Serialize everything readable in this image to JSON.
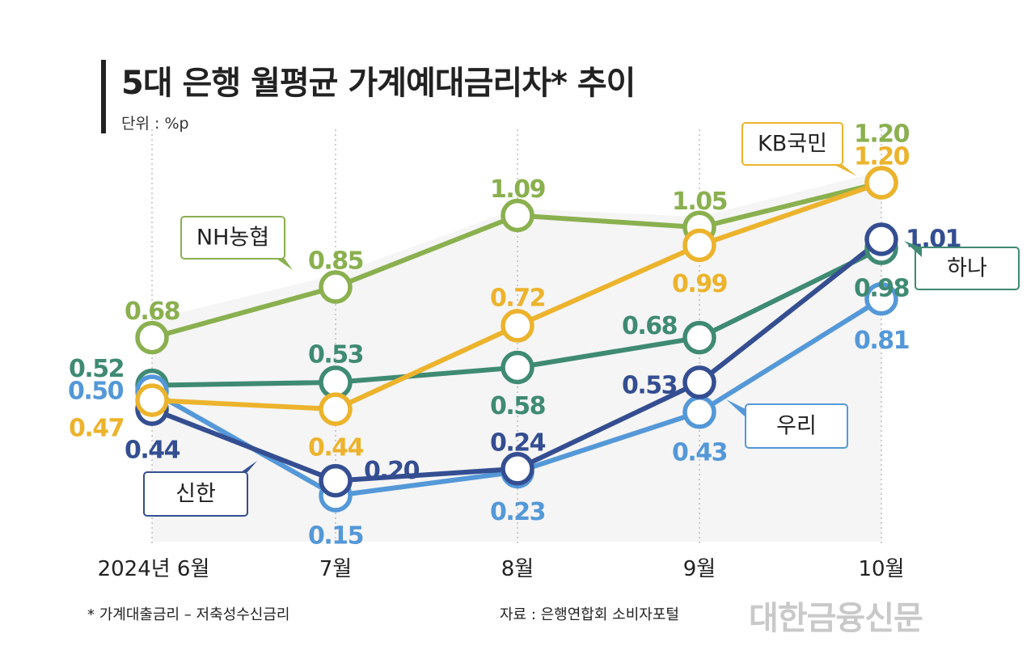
{
  "header": {
    "title": "5대 은행 월평균 가계예대금리차* 추이",
    "unit": "단위 : %p"
  },
  "footer": {
    "footnote": "* 가계대출금리 – 저축성수신금리",
    "source": "자료 : 은행연합회 소비자포털",
    "watermark": "대한금융신문"
  },
  "chart_data": {
    "type": "line",
    "title": "5대 은행 월평균 가계예대금리차* 추이",
    "ylabel": "단위 : %p",
    "categories": [
      "2024년 6월",
      "7월",
      "8월",
      "9월",
      "10월"
    ],
    "ylim": [
      0,
      1.3
    ],
    "grid": "vertical-dotted",
    "legend": "callout-labels",
    "series": [
      {
        "name": "NH농협",
        "color": "#8ab04f",
        "values": [
          0.68,
          0.85,
          1.09,
          1.05,
          1.2
        ]
      },
      {
        "name": "KB국민",
        "color": "#ecb32c",
        "values": [
          0.47,
          0.44,
          0.72,
          0.99,
          1.2
        ]
      },
      {
        "name": "하나",
        "color": "#3f8a73",
        "values": [
          0.52,
          0.53,
          0.58,
          0.68,
          0.98
        ]
      },
      {
        "name": "우리",
        "color": "#5498d8",
        "values": [
          0.5,
          0.15,
          0.23,
          0.43,
          0.81
        ]
      },
      {
        "name": "신한",
        "color": "#344e91",
        "values": [
          0.44,
          0.2,
          0.24,
          0.53,
          1.01
        ]
      }
    ]
  }
}
